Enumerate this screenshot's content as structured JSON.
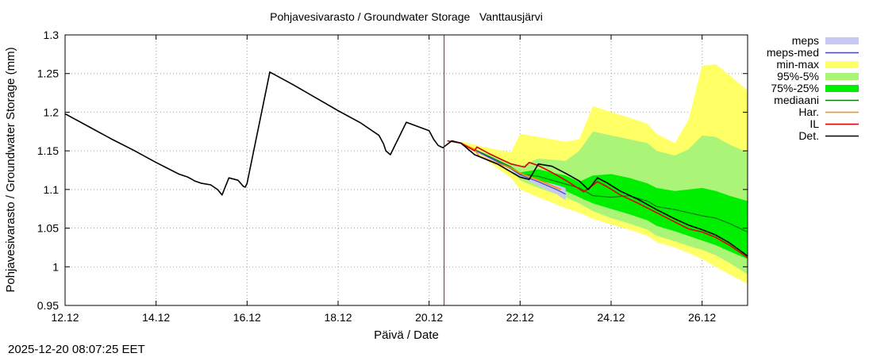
{
  "timestamp": "2025-12-20 08:07:25 EET",
  "chart_data": {
    "type": "area",
    "title": "Pohjavesivarasto / Groundwater Storage   Vanttausjärvi",
    "xlabel": "Päivä / Date",
    "ylabel": "Pohjavesivarasto / Groundwater Storage (mm)",
    "xlim": [
      0,
      15.0
    ],
    "ylim": [
      0.95,
      1.3
    ],
    "x_unit": "days since 12.12",
    "x_ticks": [
      {
        "value": 0,
        "label": "12.12"
      },
      {
        "value": 2,
        "label": "14.12"
      },
      {
        "value": 4,
        "label": "16.12"
      },
      {
        "value": 6,
        "label": "18.12"
      },
      {
        "value": 8,
        "label": "20.12"
      },
      {
        "value": 10,
        "label": "22.12"
      },
      {
        "value": 12,
        "label": "24.12"
      },
      {
        "value": 14,
        "label": "26.12"
      }
    ],
    "y_ticks": [
      {
        "value": 0.95,
        "label": "0.95"
      },
      {
        "value": 1.0,
        "label": "1"
      },
      {
        "value": 1.05,
        "label": "1.05"
      },
      {
        "value": 1.1,
        "label": "1.1"
      },
      {
        "value": 1.15,
        "label": "1.15"
      },
      {
        "value": 1.2,
        "label": "1.2"
      },
      {
        "value": 1.25,
        "label": "1.25"
      },
      {
        "value": 1.3,
        "label": "1.3"
      }
    ],
    "forecast_start": 8.33,
    "legend": [
      {
        "key": "meps",
        "label": "meps",
        "kind": "band",
        "color": "#c8c8f4"
      },
      {
        "key": "meps_med",
        "label": "meps-med",
        "kind": "line",
        "color": "#4848b8"
      },
      {
        "key": "minmax",
        "label": "min-max",
        "kind": "band",
        "color": "#ffff66"
      },
      {
        "key": "p95_5",
        "label": "95%-5%",
        "kind": "band",
        "color": "#aaf577"
      },
      {
        "key": "p75_25",
        "label": "75%-25%",
        "kind": "band",
        "color": "#00ee00"
      },
      {
        "key": "mediaani",
        "label": "mediaani",
        "kind": "line",
        "color": "#107810"
      },
      {
        "key": "har",
        "label": "Har.",
        "kind": "line",
        "color": "#ff8c00"
      },
      {
        "key": "il",
        "label": "IL",
        "kind": "line",
        "color": "#dd0000"
      },
      {
        "key": "det",
        "label": "Det.",
        "kind": "line",
        "color": "#000000"
      }
    ],
    "bands": {
      "minmax": {
        "x": [
          8.7,
          9.2,
          9.8,
          10.0,
          10.4,
          11.0,
          11.3,
          11.6,
          12.0,
          12.4,
          12.8,
          13.0,
          13.4,
          13.7,
          14.0,
          14.3,
          14.6,
          15.0
        ],
        "upper": [
          1.162,
          1.155,
          1.148,
          1.172,
          1.168,
          1.162,
          1.165,
          1.208,
          1.2,
          1.193,
          1.185,
          1.172,
          1.16,
          1.19,
          1.26,
          1.262,
          1.248,
          1.228
        ],
        "lower": [
          1.16,
          1.14,
          1.115,
          1.1,
          1.09,
          1.076,
          1.07,
          1.062,
          1.055,
          1.048,
          1.04,
          1.032,
          1.025,
          1.018,
          1.01,
          1.0,
          0.99,
          0.978
        ]
      },
      "p95_5": {
        "x": [
          8.7,
          9.2,
          9.8,
          10.0,
          10.4,
          11.0,
          11.3,
          11.6,
          12.0,
          12.4,
          12.8,
          13.0,
          13.4,
          13.7,
          14.0,
          14.3,
          14.6,
          15.0
        ],
        "upper": [
          1.16,
          1.148,
          1.135,
          1.13,
          1.14,
          1.137,
          1.15,
          1.175,
          1.17,
          1.165,
          1.16,
          1.15,
          1.144,
          1.152,
          1.17,
          1.168,
          1.158,
          1.148
        ],
        "lower": [
          1.16,
          1.144,
          1.126,
          1.112,
          1.102,
          1.09,
          1.082,
          1.072,
          1.063,
          1.056,
          1.048,
          1.04,
          1.033,
          1.027,
          1.022,
          1.015,
          1.005,
          0.99
        ]
      },
      "p75_25": {
        "x": [
          8.7,
          9.2,
          9.8,
          10.0,
          10.4,
          11.0,
          11.3,
          11.6,
          12.0,
          12.4,
          12.8,
          13.0,
          13.4,
          13.7,
          14.0,
          14.3,
          14.6,
          15.0
        ],
        "upper": [
          1.16,
          1.147,
          1.13,
          1.122,
          1.126,
          1.118,
          1.11,
          1.118,
          1.12,
          1.115,
          1.108,
          1.102,
          1.098,
          1.1,
          1.102,
          1.098,
          1.092,
          1.085
        ],
        "lower": [
          1.16,
          1.145,
          1.128,
          1.118,
          1.11,
          1.098,
          1.09,
          1.082,
          1.075,
          1.068,
          1.06,
          1.053,
          1.046,
          1.04,
          1.034,
          1.028,
          1.02,
          1.01
        ]
      },
      "meps": {
        "x": [
          8.7,
          9.2,
          9.8,
          10.0,
          10.4,
          10.8,
          11.0
        ],
        "upper": [
          1.161,
          1.146,
          1.128,
          1.12,
          1.112,
          1.106,
          1.102
        ],
        "lower": [
          1.159,
          1.143,
          1.125,
          1.117,
          1.105,
          1.094,
          1.086
        ]
      }
    },
    "series": [
      {
        "key": "mediaani",
        "name": "mediaani",
        "x": [
          8.7,
          9.2,
          9.8,
          10.0,
          10.4,
          11.0,
          11.3,
          11.6,
          12.0,
          12.4,
          12.8,
          13.0,
          13.4,
          13.7,
          14.0,
          14.3,
          14.6,
          15.0
        ],
        "y": [
          1.16,
          1.146,
          1.129,
          1.12,
          1.117,
          1.107,
          1.102,
          1.092,
          1.09,
          1.092,
          1.085,
          1.078,
          1.074,
          1.07,
          1.066,
          1.063,
          1.056,
          1.045
        ]
      },
      {
        "key": "meps_med",
        "name": "meps-med",
        "x": [
          8.7,
          9.2,
          9.8,
          10.0,
          10.4,
          10.8,
          11.0
        ],
        "y": [
          1.16,
          1.145,
          1.127,
          1.119,
          1.11,
          1.1,
          1.094
        ]
      },
      {
        "key": "har",
        "name": "Har.",
        "x": [
          8.7,
          9.0,
          9.1,
          9.4,
          9.8,
          10.0,
          10.2,
          10.5,
          10.9
        ],
        "y": [
          1.16,
          1.152,
          1.143,
          1.136,
          1.128,
          1.121,
          1.117,
          1.11,
          1.1
        ]
      },
      {
        "key": "il",
        "name": "IL",
        "x": [
          8.4,
          8.7,
          9.0,
          9.05,
          9.3,
          9.8,
          10.1,
          10.2,
          10.4,
          10.7,
          11.0,
          11.4,
          11.7,
          11.9,
          12.2,
          12.6,
          13.0,
          13.4,
          13.7,
          14.0,
          14.3,
          14.6,
          15.0
        ],
        "y": [
          1.163,
          1.16,
          1.15,
          1.155,
          1.147,
          1.133,
          1.129,
          1.135,
          1.131,
          1.122,
          1.112,
          1.097,
          1.11,
          1.104,
          1.093,
          1.082,
          1.07,
          1.058,
          1.049,
          1.045,
          1.038,
          1.028,
          1.012
        ]
      },
      {
        "key": "det",
        "name": "Det.",
        "x": [
          0.0,
          0.5,
          1.0,
          1.5,
          2.0,
          2.5,
          2.7,
          2.85,
          3.0,
          3.2,
          3.35,
          3.45,
          3.6,
          3.8,
          3.92,
          3.96,
          4.0,
          4.5,
          5.0,
          5.5,
          6.0,
          6.5,
          6.9,
          7.0,
          7.05,
          7.15,
          7.5,
          8.0,
          8.1,
          8.2,
          8.3,
          8.5,
          8.7,
          9.0,
          9.5,
          10.0,
          10.2,
          10.4,
          10.7,
          11.0,
          11.3,
          11.5,
          11.7,
          11.9,
          12.2,
          12.6,
          13.0,
          13.4,
          13.7,
          14.0,
          14.3,
          14.6,
          15.0
        ],
        "y": [
          1.198,
          1.182,
          1.166,
          1.151,
          1.135,
          1.12,
          1.116,
          1.111,
          1.108,
          1.106,
          1.1,
          1.093,
          1.115,
          1.112,
          1.104,
          1.103,
          1.108,
          1.252,
          1.236,
          1.219,
          1.202,
          1.186,
          1.17,
          1.159,
          1.15,
          1.145,
          1.187,
          1.176,
          1.165,
          1.157,
          1.154,
          1.163,
          1.16,
          1.145,
          1.133,
          1.116,
          1.113,
          1.133,
          1.13,
          1.121,
          1.111,
          1.1,
          1.115,
          1.109,
          1.098,
          1.087,
          1.074,
          1.062,
          1.054,
          1.048,
          1.041,
          1.031,
          1.014
        ]
      }
    ]
  }
}
